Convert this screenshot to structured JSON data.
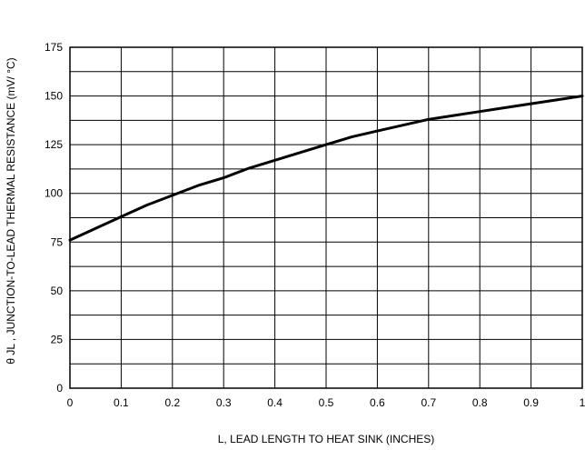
{
  "chart_data": {
    "type": "line",
    "title": "",
    "xlabel": "L, LEAD LENGTH TO HEAT SINK (INCHES)",
    "ylabel": "θ JL , JUNCTION-TO-LEAD THERMAL RESISTANCE (mV/ °C)",
    "xlim": [
      0,
      1
    ],
    "ylim": [
      0,
      175
    ],
    "x_ticks": [
      0,
      0.1,
      0.2,
      0.3,
      0.4,
      0.5,
      0.6,
      0.7,
      0.8,
      0.9,
      1
    ],
    "x_tick_labels": [
      "0",
      "0.1",
      "0.2",
      "0.3",
      "0.4",
      "0.5",
      "0.6",
      "0.7",
      "0.8",
      "0.9",
      "1"
    ],
    "y_ticks": [
      0,
      25,
      50,
      75,
      100,
      125,
      150,
      175
    ],
    "y_tick_labels": [
      "0",
      "25",
      "50",
      "75",
      "100",
      "125",
      "150",
      "175"
    ],
    "grid": true,
    "grid_x_step": 0.1,
    "grid_y_step": 12.5,
    "series": [
      {
        "name": "",
        "color": "#000000",
        "x": [
          0,
          0.05,
          0.1,
          0.15,
          0.2,
          0.25,
          0.3,
          0.35,
          0.4,
          0.45,
          0.5,
          0.55,
          0.6,
          0.65,
          0.7,
          0.75,
          0.8,
          0.85,
          0.9,
          0.95,
          1
        ],
        "y": [
          76,
          82,
          88,
          94,
          99,
          104,
          108,
          113,
          117,
          121,
          125,
          129,
          132,
          135,
          138,
          140,
          142,
          144,
          146,
          148,
          150
        ]
      }
    ]
  }
}
